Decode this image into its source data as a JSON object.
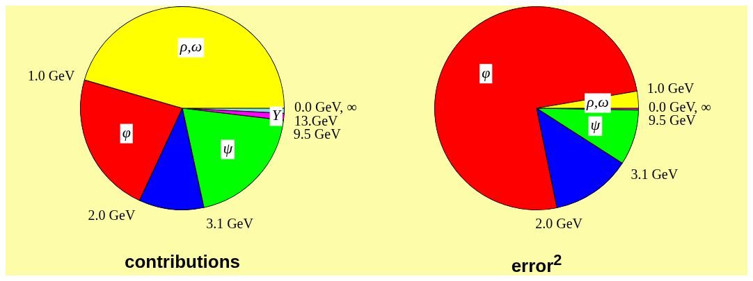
{
  "chart_data": [
    {
      "type": "pie",
      "title": "contributions",
      "categories": [
        null,
        "Υ",
        "ψ",
        null,
        "φ",
        "ρ,ω"
      ],
      "values": [
        0.8,
        1.1,
        19.7,
        10.3,
        22.6,
        45.5
      ],
      "colors": [
        "#80e0e0",
        "#ff00ff",
        "#00ff00",
        "#0000ff",
        "#ff0000",
        "#ffff00"
      ],
      "annotations": [
        "0.0 GeV, ∞",
        "13.GeV",
        "9.5 GeV",
        "3.1 GeV",
        "2.0 GeV",
        "1.0 GeV"
      ]
    },
    {
      "type": "pie",
      "title": "error$^{2}$",
      "categories": [
        null,
        "ψ",
        null,
        "φ",
        "ρ,ω"
      ],
      "values": [
        0.3,
        8.8,
        12.7,
        75.5,
        2.7
      ],
      "colors": [
        "#ff00ff",
        "#00ff00",
        "#0000ff",
        "#ff0000",
        "#ffff00"
      ],
      "annotations": [
        "0.0 GeV, ∞",
        "9.5 GeV",
        "3.1 GeV",
        "2.0 GeV",
        "1.0 GeV"
      ]
    }
  ]
}
